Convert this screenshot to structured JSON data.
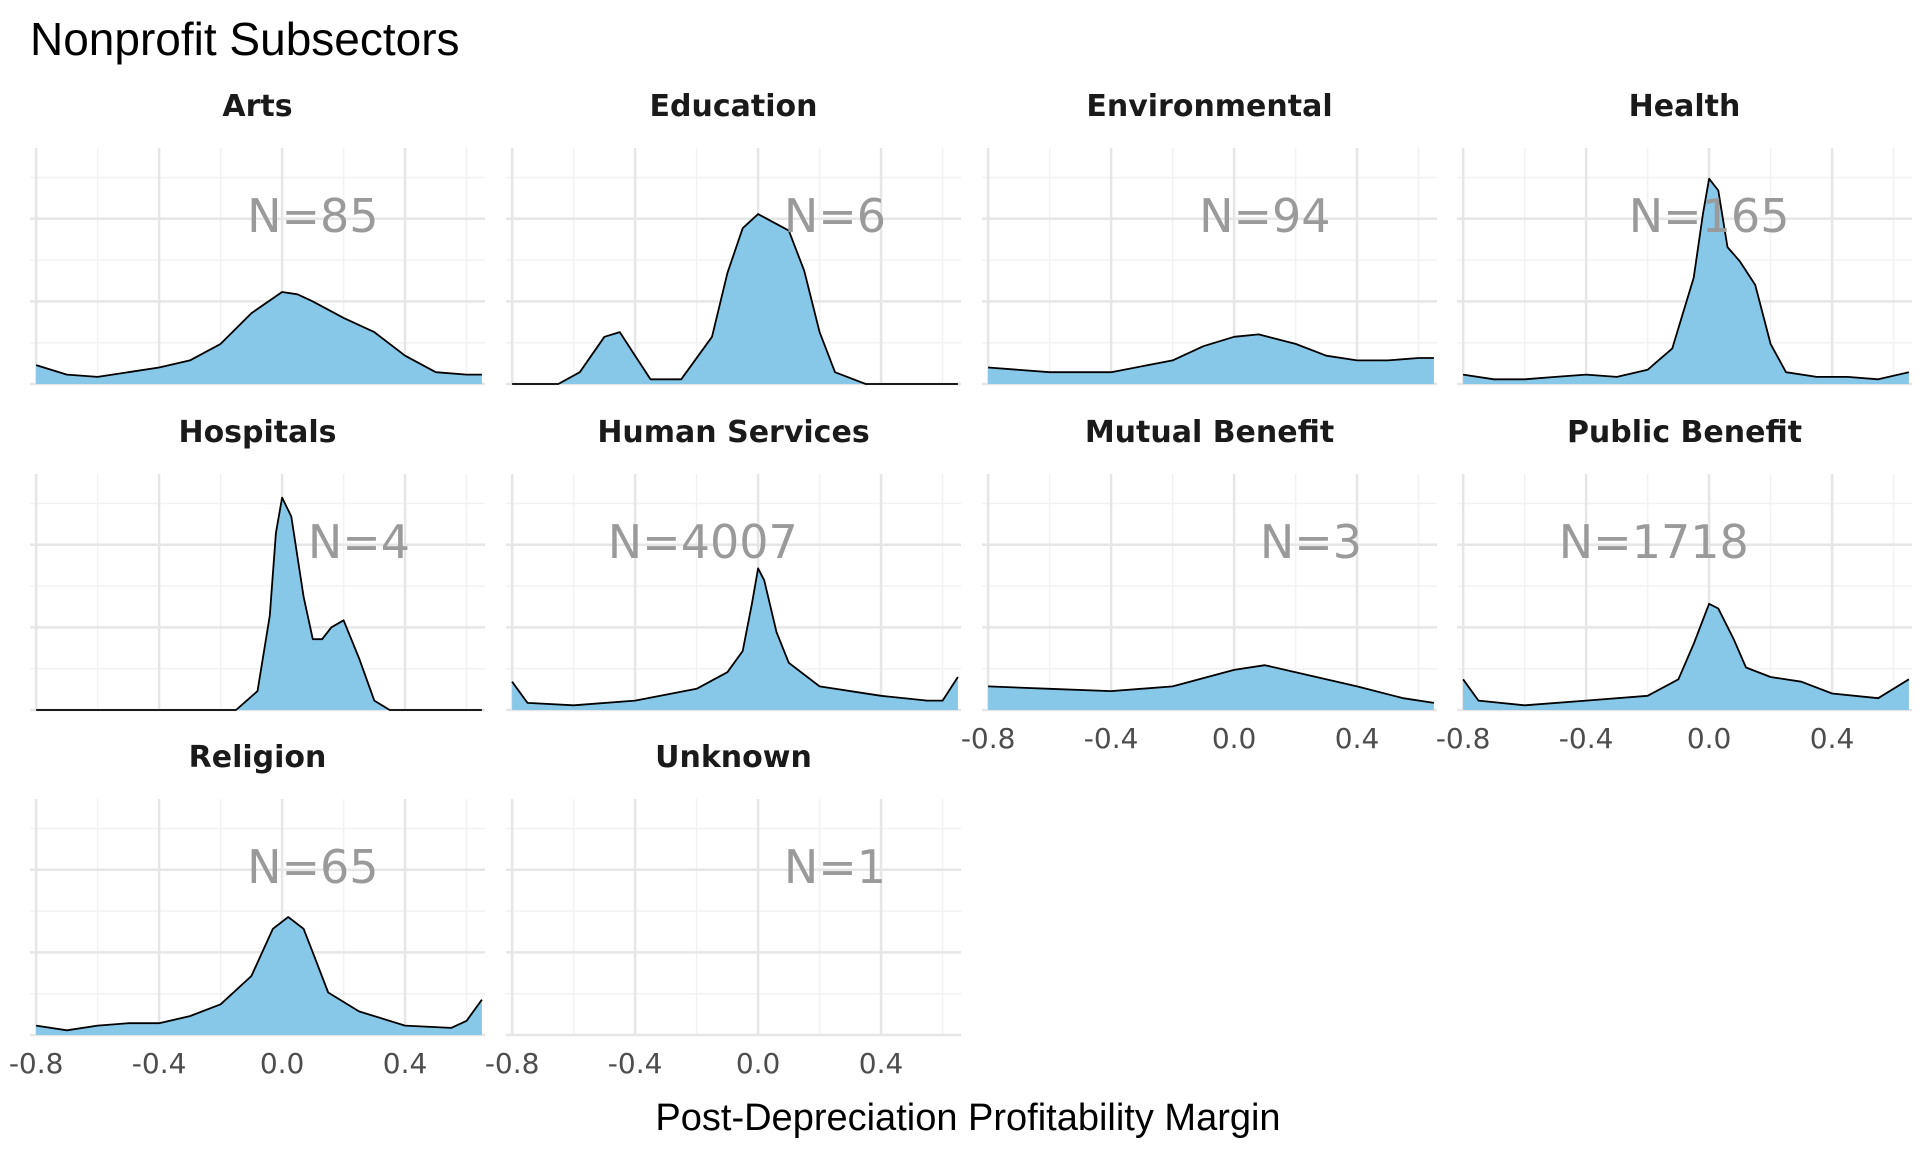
{
  "chart_data": {
    "type": "area",
    "title": "Nonprofit Subsectors",
    "xlabel": "Post-Depreciation Profitability Margin",
    "ylabel": "",
    "xlim": [
      -0.82,
      0.66
    ],
    "x_ticks": [
      -0.8,
      -0.4,
      0.0,
      0.4
    ],
    "x_tick_labels": [
      "-0.8",
      "-0.4",
      "0.0",
      "0.4"
    ],
    "grid": true,
    "legend": "none",
    "fill_color": "#87c7e8",
    "line_color": "#000000",
    "label_color": "#9a9a9a",
    "facets": [
      {
        "name": "Arts",
        "n_label": "N=85",
        "n_x": 0.1,
        "ymax": 1.0,
        "points": [
          [
            -0.8,
            0.08
          ],
          [
            -0.7,
            0.04
          ],
          [
            -0.6,
            0.03
          ],
          [
            -0.5,
            0.05
          ],
          [
            -0.4,
            0.07
          ],
          [
            -0.3,
            0.1
          ],
          [
            -0.2,
            0.17
          ],
          [
            -0.1,
            0.3
          ],
          [
            0.0,
            0.39
          ],
          [
            0.05,
            0.38
          ],
          [
            0.1,
            0.35
          ],
          [
            0.2,
            0.28
          ],
          [
            0.3,
            0.22
          ],
          [
            0.4,
            0.12
          ],
          [
            0.5,
            0.05
          ],
          [
            0.6,
            0.04
          ],
          [
            0.65,
            0.04
          ]
        ]
      },
      {
        "name": "Education",
        "n_label": "N=6",
        "n_x": 0.25,
        "ymax": 1.0,
        "points": [
          [
            -0.8,
            0
          ],
          [
            -0.65,
            0
          ],
          [
            -0.58,
            0.05
          ],
          [
            -0.5,
            0.2
          ],
          [
            -0.45,
            0.22
          ],
          [
            -0.4,
            0.12
          ],
          [
            -0.35,
            0.02
          ],
          [
            -0.25,
            0.02
          ],
          [
            -0.15,
            0.2
          ],
          [
            -0.1,
            0.47
          ],
          [
            -0.05,
            0.66
          ],
          [
            0.0,
            0.72
          ],
          [
            0.1,
            0.65
          ],
          [
            0.15,
            0.48
          ],
          [
            0.2,
            0.22
          ],
          [
            0.25,
            0.05
          ],
          [
            0.35,
            0
          ],
          [
            0.65,
            0
          ]
        ]
      },
      {
        "name": "Environmental",
        "n_label": "N=94",
        "n_x": 0.1,
        "ymax": 1.0,
        "points": [
          [
            -0.8,
            0.07
          ],
          [
            -0.6,
            0.05
          ],
          [
            -0.4,
            0.05
          ],
          [
            -0.2,
            0.1
          ],
          [
            -0.1,
            0.16
          ],
          [
            0.0,
            0.2
          ],
          [
            0.08,
            0.21
          ],
          [
            0.2,
            0.17
          ],
          [
            0.3,
            0.12
          ],
          [
            0.4,
            0.1
          ],
          [
            0.5,
            0.1
          ],
          [
            0.6,
            0.11
          ],
          [
            0.65,
            0.11
          ]
        ]
      },
      {
        "name": "Health",
        "n_label": "N=165",
        "n_x": 0.0,
        "ymax": 1.0,
        "points": [
          [
            -0.8,
            0.04
          ],
          [
            -0.7,
            0.02
          ],
          [
            -0.6,
            0.02
          ],
          [
            -0.5,
            0.03
          ],
          [
            -0.4,
            0.04
          ],
          [
            -0.3,
            0.03
          ],
          [
            -0.2,
            0.06
          ],
          [
            -0.12,
            0.15
          ],
          [
            -0.05,
            0.45
          ],
          [
            -0.02,
            0.72
          ],
          [
            0.0,
            0.87
          ],
          [
            0.03,
            0.82
          ],
          [
            0.06,
            0.58
          ],
          [
            0.1,
            0.52
          ],
          [
            0.15,
            0.42
          ],
          [
            0.2,
            0.17
          ],
          [
            0.25,
            0.05
          ],
          [
            0.35,
            0.03
          ],
          [
            0.45,
            0.03
          ],
          [
            0.55,
            0.02
          ],
          [
            0.65,
            0.05
          ]
        ]
      },
      {
        "name": "Hospitals",
        "n_label": "N=4",
        "n_x": 0.25,
        "ymax": 1.0,
        "points": [
          [
            -0.8,
            0
          ],
          [
            -0.3,
            0
          ],
          [
            -0.15,
            0
          ],
          [
            -0.08,
            0.08
          ],
          [
            -0.04,
            0.4
          ],
          [
            -0.02,
            0.75
          ],
          [
            0.0,
            0.9
          ],
          [
            0.03,
            0.82
          ],
          [
            0.07,
            0.48
          ],
          [
            0.1,
            0.3
          ],
          [
            0.13,
            0.3
          ],
          [
            0.16,
            0.35
          ],
          [
            0.2,
            0.38
          ],
          [
            0.25,
            0.22
          ],
          [
            0.3,
            0.04
          ],
          [
            0.35,
            0
          ],
          [
            0.65,
            0
          ]
        ]
      },
      {
        "name": "Human Services",
        "n_label": "N=4007",
        "n_x": -0.18,
        "ymax": 1.0,
        "points": [
          [
            -0.8,
            0.12
          ],
          [
            -0.75,
            0.03
          ],
          [
            -0.6,
            0.02
          ],
          [
            -0.4,
            0.04
          ],
          [
            -0.2,
            0.09
          ],
          [
            -0.1,
            0.16
          ],
          [
            -0.05,
            0.25
          ],
          [
            -0.02,
            0.45
          ],
          [
            0.0,
            0.6
          ],
          [
            0.02,
            0.55
          ],
          [
            0.06,
            0.33
          ],
          [
            0.1,
            0.2
          ],
          [
            0.2,
            0.1
          ],
          [
            0.4,
            0.06
          ],
          [
            0.55,
            0.04
          ],
          [
            0.6,
            0.04
          ],
          [
            0.65,
            0.14
          ]
        ]
      },
      {
        "name": "Mutual Benefit",
        "n_label": "N=3",
        "n_x": 0.25,
        "ymax": 1.0,
        "points": [
          [
            -0.8,
            0.1
          ],
          [
            -0.6,
            0.09
          ],
          [
            -0.4,
            0.08
          ],
          [
            -0.2,
            0.1
          ],
          [
            0.0,
            0.17
          ],
          [
            0.1,
            0.19
          ],
          [
            0.2,
            0.16
          ],
          [
            0.4,
            0.1
          ],
          [
            0.55,
            0.05
          ],
          [
            0.65,
            0.03
          ]
        ]
      },
      {
        "name": "Public Benefit",
        "n_label": "N=1718",
        "n_x": -0.18,
        "ymax": 1.0,
        "points": [
          [
            -0.8,
            0.13
          ],
          [
            -0.75,
            0.04
          ],
          [
            -0.6,
            0.02
          ],
          [
            -0.4,
            0.04
          ],
          [
            -0.2,
            0.06
          ],
          [
            -0.1,
            0.13
          ],
          [
            -0.05,
            0.28
          ],
          [
            0.0,
            0.45
          ],
          [
            0.03,
            0.43
          ],
          [
            0.08,
            0.3
          ],
          [
            0.12,
            0.18
          ],
          [
            0.2,
            0.14
          ],
          [
            0.3,
            0.12
          ],
          [
            0.4,
            0.07
          ],
          [
            0.55,
            0.05
          ],
          [
            0.65,
            0.13
          ]
        ]
      },
      {
        "name": "Religion",
        "n_label": "N=65",
        "n_x": 0.1,
        "ymax": 1.0,
        "points": [
          [
            -0.8,
            0.04
          ],
          [
            -0.7,
            0.02
          ],
          [
            -0.6,
            0.04
          ],
          [
            -0.5,
            0.05
          ],
          [
            -0.4,
            0.05
          ],
          [
            -0.3,
            0.08
          ],
          [
            -0.2,
            0.13
          ],
          [
            -0.1,
            0.25
          ],
          [
            -0.03,
            0.45
          ],
          [
            0.02,
            0.5
          ],
          [
            0.07,
            0.45
          ],
          [
            0.1,
            0.35
          ],
          [
            0.15,
            0.18
          ],
          [
            0.25,
            0.1
          ],
          [
            0.4,
            0.04
          ],
          [
            0.55,
            0.03
          ],
          [
            0.6,
            0.06
          ],
          [
            0.65,
            0.15
          ]
        ]
      },
      {
        "name": "Unknown",
        "n_label": "N=1",
        "n_x": 0.25,
        "ymax": 1.0,
        "points": []
      }
    ]
  }
}
